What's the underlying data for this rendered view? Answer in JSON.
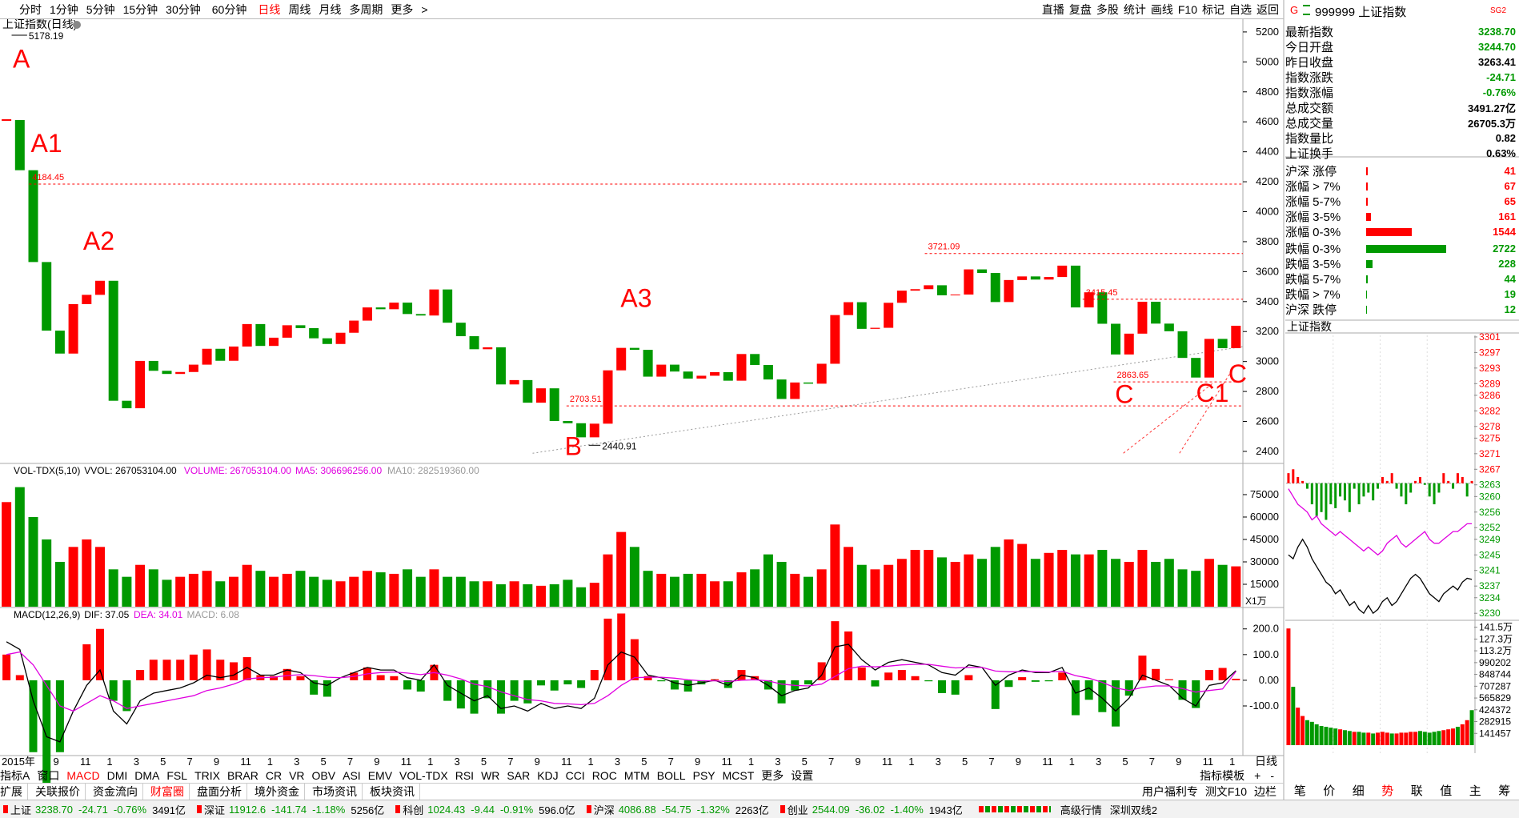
{
  "toolbar": {
    "periods": [
      "分时",
      "1分钟",
      "5分钟",
      "15分钟",
      "30分钟",
      "60分钟",
      "日线",
      "周线",
      "月线",
      "多周期",
      "更多",
      ">"
    ],
    "active": 6,
    "tools": [
      "直播",
      "复盘",
      "多股",
      "统计",
      "画线",
      "F10",
      "标记",
      "自选",
      "返回"
    ]
  },
  "chart_data": [
    {
      "type": "candlestick",
      "title": "上证指数(日线)",
      "xtick_labels": [
        "2015年",
        "9",
        "11",
        "1",
        "3",
        "5",
        "7",
        "9",
        "11",
        "1",
        "3",
        "5",
        "7",
        "9",
        "11",
        "1",
        "3",
        "5",
        "7",
        "9",
        "11",
        "1",
        "3",
        "5",
        "7",
        "9",
        "11",
        "1",
        "3",
        "5",
        "7",
        "9",
        "11",
        "1",
        "3",
        "5",
        "7",
        "9",
        "11",
        "1",
        "3",
        "5",
        "7",
        "9",
        "11",
        "1"
      ],
      "values": [
        4612,
        4277,
        3664,
        3206,
        3053,
        3383,
        3445,
        3539,
        2738,
        2688,
        3004,
        2938,
        2917,
        2930,
        2979,
        3085,
        3005,
        3100,
        3250,
        3104,
        3159,
        3242,
        3223,
        3155,
        3117,
        3192,
        3273,
        3361,
        3349,
        3393,
        3317,
        3307,
        3481,
        3259,
        3169,
        3082,
        3095,
        2847,
        2876,
        2725,
        2821,
        2603,
        2588,
        2494,
        2585,
        2941,
        3091,
        3078,
        2899,
        2979,
        2933,
        2886,
        2905,
        2929,
        2872,
        3050,
        2977,
        2880,
        2750,
        2860,
        2852,
        2985,
        3310,
        3396,
        3218,
        3225,
        3392,
        3473,
        3483,
        3509,
        3442,
        3447,
        3615,
        3591,
        3397,
        3544,
        3568,
        3547,
        3564,
        3640,
        3361,
        3462,
        3252,
        3047,
        3186,
        3399,
        3253,
        3202,
        3024,
        2893,
        3151,
        3089,
        3238.7
      ],
      "up_color": "#ff0000",
      "down_color": "#009900",
      "ylim": [
        2325,
        5285
      ],
      "yticks": [
        2400,
        2600,
        2800,
        3000,
        3200,
        3400,
        3600,
        3800,
        4000,
        4200,
        4400,
        4600,
        4800,
        5000,
        5200
      ],
      "levels": [
        4184.45,
        3721.09,
        3415.45,
        2863.65,
        2703.51
      ],
      "extremes": [
        5178.19,
        2440.91
      ],
      "annotations": [
        "A",
        "A1",
        "A2",
        "A3",
        "B",
        "C",
        "C1",
        "C"
      ],
      "x_period_label": "日线"
    },
    {
      "type": "bar",
      "title": "VOL-TDX(5,10)",
      "legend": [
        "VVOL: 267053104.00",
        "VOLUME: 267053104.00",
        "MA5: 306696256.00",
        "MA10: 282519360.00"
      ],
      "legend_colors": [
        "#000000",
        "#e000e0",
        "#e000e0",
        "#999999"
      ],
      "values": [
        70000,
        80000,
        60000,
        45000,
        30000,
        40000,
        45000,
        40000,
        25000,
        20000,
        28000,
        25000,
        18000,
        20000,
        22000,
        24000,
        17000,
        20000,
        28000,
        24000,
        20000,
        22000,
        24000,
        20000,
        18000,
        17000,
        20000,
        24000,
        23000,
        22000,
        25000,
        20000,
        25000,
        20000,
        20000,
        17000,
        17000,
        15000,
        17000,
        15000,
        14000,
        15000,
        18000,
        13000,
        16000,
        35000,
        50000,
        40000,
        24000,
        22000,
        20000,
        22000,
        22000,
        17000,
        17000,
        23000,
        25000,
        35000,
        30000,
        22000,
        20000,
        25000,
        55000,
        40000,
        28000,
        25000,
        28000,
        32000,
        38000,
        38000,
        33000,
        30000,
        35000,
        32000,
        40000,
        45000,
        42000,
        32000,
        36000,
        38000,
        35000,
        35000,
        38000,
        32000,
        30000,
        38000,
        30000,
        32000,
        25000,
        24000,
        32000,
        28000,
        27000
      ],
      "ylim": [
        0,
        94800
      ],
      "yticks": [
        15000,
        30000,
        45000,
        60000,
        75000
      ],
      "unit": "X1万"
    },
    {
      "type": "macd",
      "title": "MACD(12,26,9)",
      "legend": [
        "DIF: 37.05",
        "DEA: 34.01",
        "MACD: 6.08"
      ],
      "legend_colors": [
        "#000000",
        "#e000e0",
        "#999999"
      ],
      "series": [
        {
          "color": "#000000",
          "values": [
            150,
            120,
            -80,
            -220,
            -240,
            -120,
            -20,
            40,
            -120,
            -170,
            -80,
            -50,
            -40,
            -30,
            -10,
            20,
            10,
            20,
            50,
            20,
            20,
            40,
            30,
            -10,
            -20,
            10,
            30,
            50,
            40,
            40,
            10,
            0,
            60,
            -20,
            -50,
            -80,
            -60,
            -110,
            -100,
            -120,
            -90,
            -110,
            -100,
            -110,
            -70,
            60,
            110,
            90,
            20,
            10,
            -10,
            -20,
            -10,
            0,
            -20,
            20,
            10,
            -20,
            -60,
            -40,
            -30,
            20,
            130,
            140,
            80,
            40,
            70,
            80,
            70,
            60,
            30,
            20,
            60,
            50,
            -20,
            20,
            40,
            30,
            30,
            50,
            -50,
            -30,
            -70,
            -120,
            -70,
            20,
            0,
            -20,
            -70,
            -100,
            -20,
            -10,
            37
          ]
        },
        {
          "color": "#e000e0",
          "values": [
            100,
            110,
            60,
            -20,
            -100,
            -120,
            -90,
            -60,
            -80,
            -110,
            -100,
            -90,
            -80,
            -70,
            -60,
            -40,
            -30,
            -15,
            5,
            10,
            12,
            18,
            22,
            18,
            12,
            10,
            15,
            25,
            30,
            32,
            28,
            22,
            30,
            20,
            5,
            -15,
            -25,
            -45,
            -60,
            -75,
            -80,
            -90,
            -92,
            -95,
            -90,
            -60,
            -20,
            10,
            12,
            12,
            8,
            2,
            -2,
            -2,
            -5,
            0,
            2,
            -2,
            -15,
            -20,
            -22,
            -15,
            15,
            45,
            55,
            52,
            55,
            60,
            62,
            62,
            55,
            48,
            50,
            50,
            36,
            33,
            34,
            33,
            32,
            35,
            18,
            8,
            -8,
            -30,
            -40,
            -28,
            -22,
            -22,
            -32,
            -46,
            -40,
            -34,
            34
          ]
        },
        {
          "values": [
            100,
            20,
            -280,
            -400,
            -280,
            0,
            140,
            200,
            -80,
            -120,
            40,
            80,
            80,
            80,
            100,
            120,
            80,
            70,
            90,
            20,
            16,
            44,
            16,
            -56,
            -64,
            0,
            30,
            50,
            20,
            16,
            -36,
            -44,
            60,
            -80,
            -110,
            -130,
            -70,
            -130,
            -80,
            -90,
            -20,
            -40,
            -16,
            -30,
            40,
            240,
            260,
            160,
            16,
            -4,
            -36,
            -44,
            -16,
            4,
            -30,
            40,
            16,
            -36,
            -90,
            -40,
            -16,
            70,
            230,
            190,
            50,
            -24,
            30,
            40,
            16,
            -4,
            -50,
            -56,
            20,
            0,
            -112,
            -26,
            12,
            -6,
            -4,
            30,
            -136,
            -76,
            -124,
            -180,
            -60,
            96,
            44,
            4,
            -76,
            -108,
            40,
            48,
            6
          ]
        }
      ],
      "ylim": [
        -287,
        274
      ],
      "yticks": [
        {
          "value": -100,
          "label": "-100.0"
        },
        {
          "value": 0,
          "label": "0.00"
        },
        {
          "value": 100,
          "label": "100.0"
        },
        {
          "value": 200,
          "label": "200.0"
        }
      ]
    },
    {
      "type": "intraday",
      "title": "上证指数",
      "price": [
        3245,
        3244,
        3247,
        3249,
        3247,
        3244,
        3242,
        3240,
        3238,
        3237,
        3235,
        3236,
        3234,
        3232,
        3233,
        3231,
        3230,
        3232,
        3230,
        3231,
        3233,
        3234,
        3232,
        3233,
        3235,
        3237,
        3239,
        3240,
        3239,
        3237,
        3235,
        3234,
        3233,
        3235,
        3236,
        3237,
        3236,
        3238,
        3239,
        3238.7
      ],
      "avg": [
        3262,
        3260,
        3258,
        3257,
        3256,
        3254,
        3255,
        3253,
        3252,
        3251,
        3250,
        3251,
        3250,
        3249,
        3248,
        3247,
        3246,
        3247,
        3246,
        3245,
        3246,
        3248,
        3249,
        3250,
        3248,
        3247,
        3248,
        3249,
        3250,
        3251,
        3249,
        3248,
        3248,
        3249,
        3250,
        3251,
        3251,
        3252,
        3253,
        3253
      ],
      "ratio": [
        3266,
        3267,
        3265,
        3264,
        3262,
        3258,
        3255,
        3256,
        3254,
        3258,
        3257,
        3260,
        3259,
        3256,
        3262,
        3258,
        3260,
        3261,
        3259,
        3262,
        3265,
        3264,
        3266,
        3262,
        3260,
        3258,
        3261,
        3264,
        3265,
        3263,
        3260,
        3258,
        3261,
        3266,
        3264,
        3262,
        3266,
        3265,
        3260,
        3264
      ],
      "base": 3263.41,
      "volume": [
        1400000,
        700000,
        450000,
        350000,
        300000,
        280000,
        250000,
        230000,
        220000,
        210000,
        200000,
        190000,
        180000,
        170000,
        160000,
        160000,
        150000,
        150000,
        140000,
        150000,
        160000,
        150000,
        140000,
        140000,
        150000,
        150000,
        160000,
        160000,
        170000,
        160000,
        150000,
        160000,
        170000,
        180000,
        190000,
        200000,
        220000,
        250000,
        300000,
        420000
      ],
      "ylim": [
        3228.4,
        3301.4
      ],
      "yticks": [
        3301,
        3297,
        3293,
        3289,
        3286,
        3282,
        3278,
        3275,
        3271,
        3267,
        3263,
        3260,
        3256,
        3252,
        3249,
        3245,
        3241,
        3237,
        3234,
        3230
      ],
      "vlim": [
        0,
        1450000
      ],
      "vticks": [
        {
          "value": 1415000,
          "label": "141.5万"
        },
        {
          "value": 1273000,
          "label": "127.3万"
        },
        {
          "value": 1132000,
          "label": "113.2万"
        },
        990202,
        848744,
        707287,
        565829,
        424372,
        282915,
        141457
      ]
    }
  ],
  "quote": {
    "badge": "G",
    "code": "999999 上证指数",
    "tag": "SG2",
    "rows": [
      {
        "label": "最新指数",
        "value": "3238.70",
        "color": "#009900"
      },
      {
        "label": "今日开盘",
        "value": "3244.70",
        "color": "#009900"
      },
      {
        "label": "昨日收盘",
        "value": "3263.41",
        "color": "#000000"
      },
      {
        "label": "指数涨跌",
        "value": "-24.71",
        "color": "#009900"
      },
      {
        "label": "指数涨幅",
        "value": "-0.76%",
        "color": "#009900"
      },
      {
        "label": "总成交额",
        "value": "3491.27亿",
        "color": "#000000"
      },
      {
        "label": "总成交量",
        "value": "26705.3万",
        "color": "#000000"
      },
      {
        "label": "指数量比",
        "value": "0.82",
        "color": "#000000"
      },
      {
        "label": "上证换手",
        "value": "0.63%",
        "color": "#000000"
      }
    ],
    "breadth": [
      {
        "label": "沪深 涨停",
        "value": 41,
        "color": "#ff0000"
      },
      {
        "label": "涨幅 > 7%",
        "value": 67,
        "color": "#ff0000"
      },
      {
        "label": "涨幅 5-7%",
        "value": 65,
        "color": "#ff0000"
      },
      {
        "label": "涨幅 3-5%",
        "value": 161,
        "color": "#ff0000"
      },
      {
        "label": "涨幅 0-3%",
        "value": 1544,
        "color": "#ff0000"
      },
      {
        "label": "跌幅 0-3%",
        "value": 2722,
        "color": "#009900"
      },
      {
        "label": "跌幅 3-5%",
        "value": 228,
        "color": "#009900"
      },
      {
        "label": "跌幅 5-7%",
        "value": 44,
        "color": "#009900"
      },
      {
        "label": "跌幅 > 7%",
        "value": 19,
        "color": "#009900"
      },
      {
        "label": "沪深 跌停",
        "value": 12,
        "color": "#009900"
      }
    ]
  },
  "indicator_bar": {
    "items": [
      "指标A",
      "窗口",
      "MACD",
      "DMI",
      "DMA",
      "FSL",
      "TRIX",
      "BRAR",
      "CR",
      "VR",
      "OBV",
      "ASI",
      "EMV",
      "VOL-TDX",
      "RSI",
      "WR",
      "SAR",
      "KDJ",
      "CCI",
      "ROC",
      "MTM",
      "BOLL",
      "PSY",
      "MCST",
      "更多",
      "设置"
    ],
    "active": 2,
    "right": [
      "指标模板",
      "+",
      "-"
    ]
  },
  "extension_bar": {
    "items": [
      "扩展",
      "关联报价",
      "资金流向",
      "财富圈",
      "盘面分析",
      "境外资金",
      "市场资讯",
      "板块资讯"
    ],
    "active": 3,
    "right": [
      "用户福利专",
      "测文F10",
      "边栏"
    ]
  },
  "side_tabs": {
    "items": [
      "笔",
      "价",
      "细",
      "势",
      "联",
      "值",
      "主",
      "筹"
    ],
    "active": 3
  },
  "status": {
    "items": [
      {
        "name": "上证",
        "price": "3238.70",
        "change": "-24.71",
        "pct": "-0.76%",
        "amount": "3491亿",
        "color": "#009900"
      },
      {
        "name": "深证",
        "price": "11912.6",
        "change": "-141.74",
        "pct": "-1.18%",
        "amount": "5256亿",
        "color": "#009900"
      },
      {
        "name": "科创",
        "price": "1024.43",
        "change": "-9.44",
        "pct": "-0.91%",
        "amount": "596.0亿",
        "color": "#009900"
      },
      {
        "name": "沪深",
        "price": "4086.88",
        "change": "-54.75",
        "pct": "-1.32%",
        "amount": "2263亿",
        "color": "#009900"
      },
      {
        "name": "创业",
        "price": "2544.09",
        "change": "-36.02",
        "pct": "-1.40%",
        "amount": "1943亿",
        "color": "#009900"
      }
    ],
    "right": [
      "高级行情",
      "深圳双线2"
    ]
  }
}
